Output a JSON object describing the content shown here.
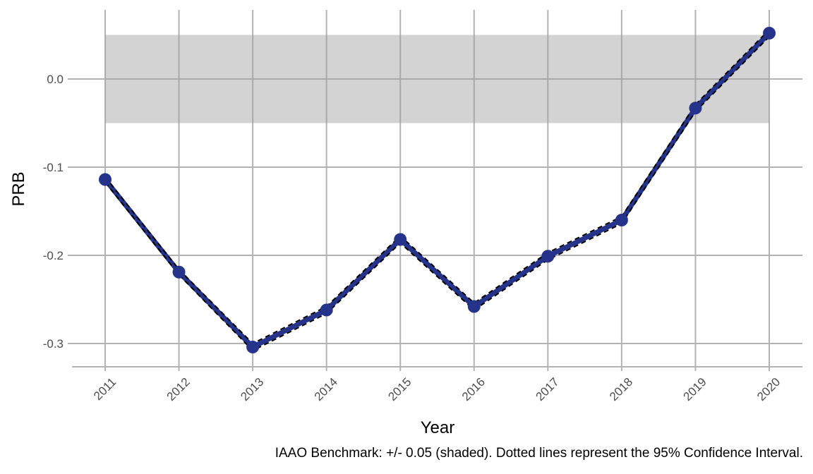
{
  "chart_data": {
    "type": "line",
    "xlabel": "Year",
    "ylabel": "PRB",
    "caption": "IAAO Benchmark: +/- 0.05 (shaded). Dotted lines represent the 95% Confidence Interval.",
    "categories": [
      "2011",
      "2012",
      "2013",
      "2014",
      "2015",
      "2016",
      "2017",
      "2018",
      "2019",
      "2020"
    ],
    "series": [
      {
        "values": [
          -0.114,
          -0.219,
          -0.304,
          -0.262,
          -0.182,
          -0.258,
          -0.201,
          -0.16,
          -0.033,
          0.052
        ]
      }
    ],
    "ci_lower": [
      -0.117,
      -0.222,
      -0.308,
      -0.266,
      -0.186,
      -0.262,
      -0.205,
      -0.164,
      -0.037,
      0.048
    ],
    "ci_upper": [
      -0.111,
      -0.216,
      -0.3,
      -0.258,
      -0.178,
      -0.254,
      -0.197,
      -0.156,
      -0.029,
      0.056
    ],
    "benchmark_band": [
      -0.05,
      0.05
    ],
    "yticks": [
      0.0,
      -0.1,
      -0.2,
      -0.3
    ],
    "ytick_labels": [
      "0.0",
      "-0.1",
      "-0.2",
      "-0.3"
    ],
    "ylim": [
      -0.33,
      0.07
    ],
    "grid": true,
    "colors": {
      "line": "#26338a",
      "ci": "#000000",
      "band": "#d3d3d3",
      "grid": "#b3b3b3"
    }
  }
}
